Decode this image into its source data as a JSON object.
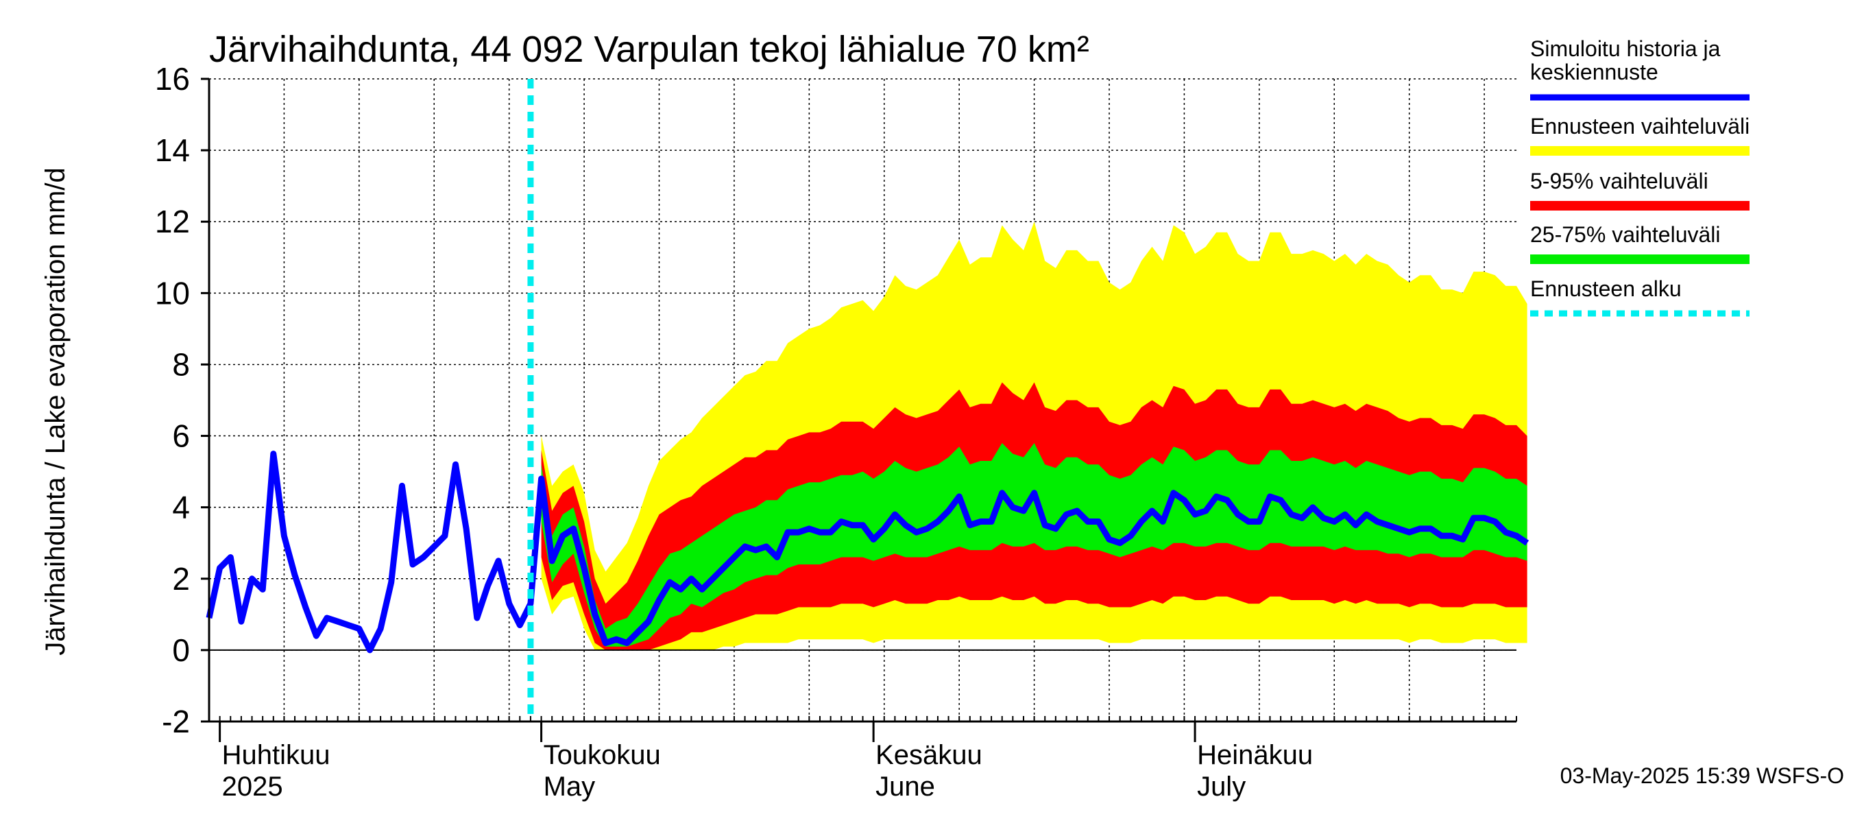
{
  "chart_data": {
    "type": "area",
    "title": "Järvihaihdunta, 44 092 Varpulan tekoj lähialue 70 km²",
    "ylabel": "Järvihaihdunta / Lake evaporation   mm/d",
    "ylim": [
      -2,
      16
    ],
    "yticks": [
      "-2",
      "0",
      "2",
      "4",
      "6",
      "8",
      "10",
      "12",
      "14",
      "16"
    ],
    "xlim": [
      "2025-03-31",
      "2025-07-31"
    ],
    "month_labels": [
      {
        "date": "2025-04-01",
        "fi": "Huhtikuu",
        "en": "2025"
      },
      {
        "date": "2025-05-01",
        "fi": "Toukokuu",
        "en": "May"
      },
      {
        "date": "2025-06-01",
        "fi": "Kesäkuu",
        "en": "June"
      },
      {
        "date": "2025-07-01",
        "fi": "Heinäkuu",
        "en": "July"
      }
    ],
    "forecast_start": "2025-04-30",
    "legend": [
      {
        "label": "Simuloitu historia ja keskiennuste",
        "color": "#0000ff",
        "style": "line"
      },
      {
        "label": "Ennusteen vaihteluväli",
        "color": "#ffff00",
        "style": "band"
      },
      {
        "label": "5-95% vaihteluväli",
        "color": "#ff0000",
        "style": "band"
      },
      {
        "label": "25-75% vaihteluväli",
        "color": "#00ee00",
        "style": "band"
      },
      {
        "label": "Ennusteen alku",
        "color": "#00eeee",
        "style": "dashed"
      }
    ],
    "history": {
      "start": "2025-03-31",
      "values": [
        0.9,
        2.3,
        2.6,
        0.8,
        2.0,
        1.7,
        5.5,
        3.2,
        2.1,
        1.2,
        0.4,
        0.9,
        0.8,
        0.7,
        0.6,
        0.0,
        0.6,
        1.9,
        4.6,
        2.4,
        2.6,
        2.9,
        3.2,
        5.2,
        3.4,
        0.9,
        1.8,
        2.5,
        1.3,
        0.7,
        1.3,
        4.8,
        2.5,
        3.2,
        3.4,
        2.3,
        1.0,
        0.2,
        0.3,
        0.2,
        0.5,
        0.8
      ]
    },
    "forecast": {
      "start": "2025-05-01",
      "median": [
        4.8,
        2.5,
        3.2,
        3.4,
        2.3,
        1.0,
        0.2,
        0.3,
        0.2,
        0.5,
        0.8,
        1.4,
        1.9,
        1.7,
        2.0,
        1.7,
        2.0,
        2.3,
        2.6,
        2.9,
        2.8,
        2.9,
        2.6,
        3.3,
        3.3,
        3.4,
        3.3,
        3.3,
        3.6,
        3.5,
        3.5,
        3.1,
        3.4,
        3.8,
        3.5,
        3.3,
        3.4,
        3.6,
        3.9,
        4.3,
        3.5,
        3.6,
        3.6,
        4.4,
        4.0,
        3.9,
        4.4,
        3.5,
        3.4,
        3.8,
        3.9,
        3.6,
        3.6,
        3.1,
        3.0,
        3.2,
        3.6,
        3.9,
        3.6,
        4.4,
        4.2,
        3.8,
        3.9,
        4.3,
        4.2,
        3.8,
        3.6,
        3.6,
        4.3,
        4.2,
        3.8,
        3.7,
        4.0,
        3.7,
        3.6,
        3.8,
        3.5,
        3.8,
        3.6,
        3.5,
        3.4,
        3.3,
        3.4,
        3.4,
        3.2,
        3.2,
        3.1,
        3.7,
        3.7,
        3.6,
        3.3,
        3.2,
        3.0
      ],
      "p25": [
        3.6,
        1.9,
        2.4,
        2.7,
        1.6,
        0.6,
        0.1,
        0.1,
        0.1,
        0.2,
        0.3,
        0.6,
        0.9,
        1.0,
        1.3,
        1.2,
        1.4,
        1.6,
        1.7,
        1.9,
        2.0,
        2.1,
        2.1,
        2.3,
        2.4,
        2.4,
        2.4,
        2.5,
        2.6,
        2.6,
        2.6,
        2.5,
        2.6,
        2.7,
        2.6,
        2.6,
        2.6,
        2.7,
        2.8,
        2.9,
        2.8,
        2.8,
        2.8,
        3.0,
        2.9,
        2.9,
        3.0,
        2.8,
        2.8,
        2.9,
        2.9,
        2.8,
        2.8,
        2.7,
        2.6,
        2.7,
        2.8,
        2.9,
        2.8,
        3.0,
        3.0,
        2.9,
        2.9,
        3.0,
        3.0,
        2.9,
        2.8,
        2.8,
        3.0,
        3.0,
        2.9,
        2.9,
        2.9,
        2.9,
        2.8,
        2.9,
        2.8,
        2.8,
        2.8,
        2.7,
        2.7,
        2.6,
        2.7,
        2.7,
        2.6,
        2.6,
        2.6,
        2.8,
        2.8,
        2.7,
        2.6,
        2.6,
        2.5
      ],
      "p75": [
        5.2,
        3.2,
        3.8,
        4.0,
        2.9,
        1.4,
        0.6,
        0.8,
        0.9,
        1.3,
        1.8,
        2.3,
        2.7,
        2.8,
        3.0,
        3.2,
        3.4,
        3.6,
        3.8,
        3.9,
        4.0,
        4.2,
        4.2,
        4.5,
        4.6,
        4.7,
        4.7,
        4.8,
        4.9,
        4.9,
        5.0,
        4.8,
        5.0,
        5.3,
        5.1,
        5.0,
        5.1,
        5.2,
        5.4,
        5.7,
        5.2,
        5.3,
        5.3,
        5.8,
        5.5,
        5.4,
        5.8,
        5.2,
        5.1,
        5.4,
        5.4,
        5.2,
        5.2,
        4.9,
        4.8,
        4.9,
        5.2,
        5.4,
        5.2,
        5.7,
        5.6,
        5.3,
        5.4,
        5.6,
        5.6,
        5.3,
        5.2,
        5.2,
        5.6,
        5.6,
        5.3,
        5.3,
        5.4,
        5.3,
        5.2,
        5.3,
        5.1,
        5.3,
        5.2,
        5.1,
        5.0,
        4.9,
        5.0,
        5.0,
        4.8,
        4.8,
        4.7,
        5.1,
        5.1,
        5.0,
        4.8,
        4.8,
        4.6
      ],
      "p5": [
        2.6,
        1.4,
        1.8,
        1.9,
        1.0,
        0.2,
        0.0,
        0.0,
        0.0,
        0.0,
        0.0,
        0.1,
        0.2,
        0.3,
        0.5,
        0.5,
        0.6,
        0.7,
        0.8,
        0.9,
        1.0,
        1.0,
        1.0,
        1.1,
        1.2,
        1.2,
        1.2,
        1.2,
        1.3,
        1.3,
        1.3,
        1.2,
        1.3,
        1.4,
        1.3,
        1.3,
        1.3,
        1.4,
        1.4,
        1.5,
        1.4,
        1.4,
        1.4,
        1.5,
        1.4,
        1.4,
        1.5,
        1.3,
        1.3,
        1.4,
        1.4,
        1.3,
        1.3,
        1.2,
        1.2,
        1.2,
        1.3,
        1.4,
        1.3,
        1.5,
        1.5,
        1.4,
        1.4,
        1.5,
        1.5,
        1.4,
        1.3,
        1.3,
        1.5,
        1.5,
        1.4,
        1.4,
        1.4,
        1.4,
        1.3,
        1.4,
        1.3,
        1.4,
        1.3,
        1.3,
        1.3,
        1.2,
        1.3,
        1.3,
        1.2,
        1.2,
        1.2,
        1.3,
        1.3,
        1.3,
        1.2,
        1.2,
        1.2
      ],
      "p95": [
        5.6,
        3.9,
        4.4,
        4.6,
        3.6,
        2.0,
        1.3,
        1.6,
        1.9,
        2.5,
        3.2,
        3.8,
        4.0,
        4.2,
        4.3,
        4.6,
        4.8,
        5.0,
        5.2,
        5.4,
        5.4,
        5.6,
        5.6,
        5.9,
        6.0,
        6.1,
        6.1,
        6.2,
        6.4,
        6.4,
        6.4,
        6.2,
        6.5,
        6.8,
        6.6,
        6.5,
        6.6,
        6.7,
        7.0,
        7.3,
        6.8,
        6.9,
        6.9,
        7.5,
        7.2,
        7.0,
        7.5,
        6.8,
        6.7,
        7.0,
        7.0,
        6.8,
        6.8,
        6.4,
        6.3,
        6.4,
        6.8,
        7.0,
        6.8,
        7.4,
        7.3,
        6.9,
        7.0,
        7.3,
        7.3,
        6.9,
        6.8,
        6.8,
        7.3,
        7.3,
        6.9,
        6.9,
        7.0,
        6.9,
        6.8,
        6.9,
        6.7,
        6.9,
        6.8,
        6.7,
        6.5,
        6.4,
        6.5,
        6.5,
        6.3,
        6.3,
        6.2,
        6.6,
        6.6,
        6.5,
        6.3,
        6.3,
        6.0
      ],
      "min": [
        2.0,
        1.0,
        1.4,
        1.5,
        0.6,
        0.0,
        0.0,
        0.0,
        0.0,
        0.0,
        0.0,
        0.0,
        0.0,
        0.0,
        0.0,
        0.0,
        0.0,
        0.1,
        0.1,
        0.2,
        0.2,
        0.2,
        0.2,
        0.2,
        0.3,
        0.3,
        0.3,
        0.3,
        0.3,
        0.3,
        0.3,
        0.2,
        0.3,
        0.3,
        0.3,
        0.3,
        0.3,
        0.3,
        0.3,
        0.3,
        0.3,
        0.3,
        0.3,
        0.3,
        0.3,
        0.3,
        0.3,
        0.3,
        0.3,
        0.3,
        0.3,
        0.3,
        0.3,
        0.2,
        0.2,
        0.2,
        0.3,
        0.3,
        0.3,
        0.3,
        0.3,
        0.3,
        0.3,
        0.3,
        0.3,
        0.3,
        0.3,
        0.3,
        0.3,
        0.3,
        0.3,
        0.3,
        0.3,
        0.3,
        0.3,
        0.3,
        0.3,
        0.3,
        0.3,
        0.3,
        0.3,
        0.2,
        0.3,
        0.3,
        0.2,
        0.2,
        0.2,
        0.3,
        0.3,
        0.3,
        0.2,
        0.2,
        0.2
      ],
      "max": [
        6.0,
        4.6,
        5.0,
        5.2,
        4.4,
        2.8,
        2.2,
        2.6,
        3.0,
        3.7,
        4.6,
        5.3,
        5.6,
        5.9,
        6.1,
        6.5,
        6.8,
        7.1,
        7.4,
        7.7,
        7.8,
        8.1,
        8.1,
        8.6,
        8.8,
        9.0,
        9.1,
        9.3,
        9.6,
        9.7,
        9.8,
        9.5,
        9.9,
        10.5,
        10.2,
        10.1,
        10.3,
        10.5,
        11.0,
        11.5,
        10.8,
        11.0,
        11.0,
        11.9,
        11.5,
        11.2,
        12.0,
        10.9,
        10.7,
        11.2,
        11.2,
        10.9,
        10.9,
        10.3,
        10.1,
        10.3,
        10.9,
        11.3,
        10.9,
        11.9,
        11.7,
        11.1,
        11.3,
        11.7,
        11.7,
        11.1,
        10.9,
        10.9,
        11.7,
        11.7,
        11.1,
        11.1,
        11.2,
        11.1,
        10.9,
        11.1,
        10.8,
        11.1,
        10.9,
        10.8,
        10.5,
        10.3,
        10.5,
        10.5,
        10.1,
        10.1,
        10.0,
        10.6,
        10.6,
        10.5,
        10.2,
        10.2,
        9.7
      ]
    },
    "grid": true,
    "legend_position": "right"
  },
  "footer": {
    "timestamp": "03-May-2025 15:39 WSFS-O"
  }
}
